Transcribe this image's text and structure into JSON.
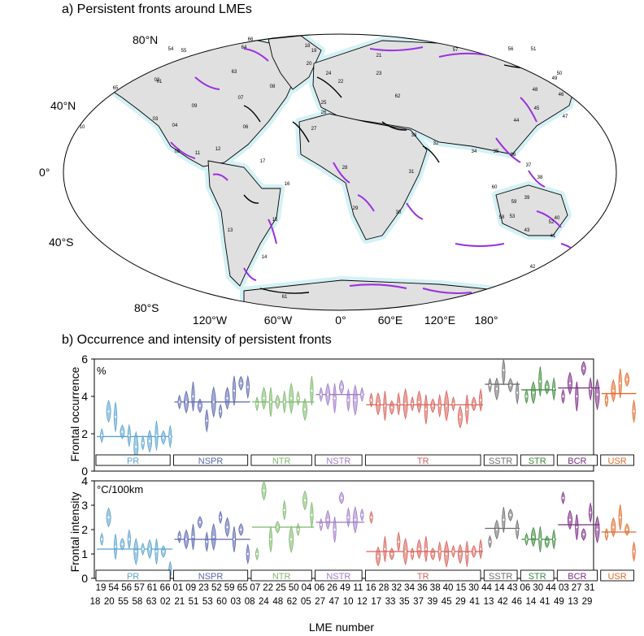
{
  "panel_a": {
    "title": "a) Persistent fronts around LMEs",
    "lat_labels": [
      "80°N",
      "40°N",
      "0°",
      "40°S",
      "80°S"
    ],
    "lon_labels": [
      "120°W",
      "60°W",
      "0°",
      "60°E",
      "120°E",
      "180°"
    ],
    "lme_labels": [
      "66",
      "54",
      "55",
      "64",
      "01",
      "02",
      "65",
      "10",
      "63",
      "07",
      "18",
      "19",
      "20",
      "21",
      "57",
      "56",
      "23",
      "22",
      "24",
      "25",
      "26",
      "62",
      "09",
      "06",
      "08",
      "03",
      "04",
      "05",
      "11",
      "12",
      "13",
      "14",
      "15",
      "16",
      "17",
      "27",
      "28",
      "29",
      "30",
      "31",
      "32",
      "33",
      "34",
      "35",
      "36",
      "37",
      "38",
      "39",
      "40",
      "41",
      "42",
      "43",
      "44",
      "45",
      "46",
      "47",
      "48",
      "49",
      "50",
      "51",
      "52",
      "53",
      "58",
      "59",
      "60",
      "61"
    ],
    "colors": {
      "land": "#e0e0e0",
      "shelf": "#d4f1f5",
      "front_black": "#000000",
      "front_purple": "#9b30e0"
    }
  },
  "panel_b": {
    "title": "b) Occurrence and intensity of persistent fronts",
    "x_axis_label": "LME number"
  },
  "chart_data": [
    {
      "type": "violin",
      "ylabel": "Frontal occurrence",
      "unit_label": "%",
      "ylim": [
        0,
        6
      ],
      "yticks": [
        0,
        2,
        4,
        6
      ],
      "regions": [
        {
          "name": "PR",
          "lmes": [
            "18",
            "19",
            "20",
            "54",
            "55",
            "56",
            "57",
            "58",
            "61",
            "63",
            "66"
          ],
          "color": "#5ba3d0",
          "mean": 1.85,
          "values": [
            1.9,
            3.2,
            2.9,
            2.1,
            1.9,
            1.3,
            1.5,
            1.6,
            1.9,
            1.8,
            1.85
          ]
        },
        {
          "name": "NSPR",
          "lmes": [
            "01",
            "02",
            "09",
            "21",
            "23",
            "51",
            "52",
            "53",
            "59",
            "60",
            "65"
          ],
          "color": "#5b66b0",
          "mean": 3.7,
          "values": [
            3.7,
            3.7,
            4.0,
            3.5,
            2.7,
            3.7,
            3.2,
            3.9,
            4.3,
            4.7,
            4.5
          ]
        },
        {
          "name": "NTR",
          "lmes": [
            "03",
            "07",
            "08",
            "22",
            "24",
            "25",
            "48",
            "50",
            "62"
          ],
          "color": "#7fb86e",
          "mean": 3.7,
          "values": [
            3.6,
            3.9,
            3.7,
            3.7,
            3.7,
            3.9,
            3.9,
            3.3,
            4.3
          ]
        },
        {
          "name": "NSTR",
          "lmes": [
            "04",
            "05",
            "06",
            "26",
            "27",
            "47",
            "49"
          ],
          "color": "#a17bc9",
          "mean": 4.1,
          "values": [
            4.1,
            4.1,
            3.9,
            4.5,
            3.8,
            3.8,
            4.1
          ]
        },
        {
          "name": "TR",
          "lmes": [
            "10",
            "11",
            "12",
            "16",
            "17",
            "28",
            "30",
            "32",
            "33",
            "34",
            "35",
            "36",
            "37",
            "38",
            "39",
            "40",
            "45"
          ],
          "color": "#d9605a",
          "mean": 3.55,
          "values": [
            3.8,
            3.6,
            3.5,
            3.4,
            3.6,
            3.6,
            3.6,
            3.7,
            3.3,
            3.5,
            3.5,
            3.5,
            3.6,
            2.9,
            3.3,
            3.6,
            3.8
          ]
        },
        {
          "name": "SSTR",
          "lmes": [
            "15",
            "29",
            "30",
            "41",
            "44"
          ],
          "color": "#6e6e6e",
          "mean": 4.65,
          "values": [
            4.6,
            4.4,
            5.4,
            4.6,
            4.2
          ]
        },
        {
          "name": "STR",
          "lmes": [
            "13",
            "14",
            "42",
            "43",
            "46"
          ],
          "color": "#3e8a3e",
          "mean": 4.35,
          "values": [
            4.0,
            4.2,
            4.8,
            4.5,
            4.4
          ]
        },
        {
          "name": "BCR",
          "lmes": [
            "06",
            "14",
            "30",
            "41",
            "44",
            "49"
          ],
          "color": "#7a2c83",
          "mean": 4.45,
          "values": [
            4.0,
            4.7,
            4.0,
            5.5,
            4.4,
            4.1
          ]
        },
        {
          "name": "USR",
          "lmes": [
            "03",
            "13",
            "27",
            "29",
            "31"
          ],
          "color": "#e06b2d",
          "mean": 4.15,
          "values": [
            3.8,
            4.3,
            4.7,
            4.9,
            3.2
          ]
        }
      ]
    },
    {
      "type": "violin",
      "ylabel": "Frontal intensity",
      "unit_label": "°C/100km",
      "ylim": [
        0,
        4
      ],
      "yticks": [
        0,
        1,
        2,
        3,
        4
      ],
      "regions": [
        {
          "name": "PR",
          "lmes": [
            "18",
            "19",
            "20",
            "54",
            "55",
            "56",
            "57",
            "58",
            "61",
            "63",
            "66"
          ],
          "color": "#5ba3d0",
          "mean": 1.2,
          "values": [
            1.6,
            2.5,
            1.3,
            1.4,
            1.6,
            1.1,
            1.2,
            1.2,
            1.1,
            1.1,
            0.3
          ]
        },
        {
          "name": "NSPR",
          "lmes": [
            "01",
            "02",
            "09",
            "21",
            "23",
            "51",
            "52",
            "53",
            "59",
            "60",
            "65"
          ],
          "color": "#5b66b0",
          "mean": 1.6,
          "values": [
            1.7,
            1.6,
            1.7,
            2.3,
            1.5,
            1.7,
            2.5,
            2.1,
            1.6,
            2.0,
            1.0
          ]
        },
        {
          "name": "NTR",
          "lmes": [
            "03",
            "07",
            "08",
            "22",
            "24",
            "25",
            "48",
            "50",
            "62"
          ],
          "color": "#7fb86e",
          "mean": 2.1,
          "values": [
            1.0,
            3.6,
            1.6,
            2.1,
            2.8,
            1.6,
            2.0,
            3.2,
            2.6
          ]
        },
        {
          "name": "NSTR",
          "lmes": [
            "04",
            "05",
            "06",
            "26",
            "27",
            "47",
            "49"
          ],
          "color": "#a17bc9",
          "mean": 2.3,
          "values": [
            2.2,
            2.4,
            2.0,
            3.3,
            2.5,
            2.4,
            2.6
          ]
        },
        {
          "name": "TR",
          "lmes": [
            "10",
            "11",
            "12",
            "16",
            "17",
            "28",
            "30",
            "32",
            "33",
            "34",
            "35",
            "36",
            "37",
            "38",
            "39",
            "40",
            "45"
          ],
          "color": "#d9605a",
          "mean": 1.1,
          "values": [
            2.5,
            0.9,
            1.2,
            1.0,
            1.5,
            1.1,
            1.0,
            1.2,
            1.2,
            1.0,
            1.1,
            1.0,
            1.1,
            1.0,
            1.0,
            1.1,
            1.2
          ]
        },
        {
          "name": "SSTR",
          "lmes": [
            "15",
            "29",
            "30",
            "41",
            "44"
          ],
          "color": "#6e6e6e",
          "mean": 2.05,
          "values": [
            1.5,
            2.0,
            2.4,
            2.6,
            2.0
          ]
        },
        {
          "name": "STR",
          "lmes": [
            "13",
            "14",
            "42",
            "43",
            "46"
          ],
          "color": "#3e8a3e",
          "mean": 1.6,
          "values": [
            1.6,
            1.7,
            1.6,
            1.5,
            1.6
          ]
        },
        {
          "name": "BCR",
          "lmes": [
            "06",
            "14",
            "30",
            "41",
            "44",
            "49"
          ],
          "color": "#7a2c83",
          "mean": 2.2,
          "values": [
            3.3,
            2.4,
            2.1,
            1.8,
            2.7,
            2.0
          ]
        },
        {
          "name": "USR",
          "lmes": [
            "03",
            "13",
            "27",
            "29",
            "31"
          ],
          "color": "#e06b2d",
          "mean": 1.9,
          "values": [
            1.8,
            2.1,
            2.5,
            2.0,
            1.1
          ]
        }
      ]
    }
  ],
  "x_tick_labels_top": [
    "19",
    "54",
    "56",
    "57",
    "61",
    "66",
    "01",
    "09",
    "23",
    "52",
    "59",
    "65",
    "07",
    "22",
    "25",
    "50",
    "04",
    "06",
    "26",
    "49",
    "11",
    "16",
    "28",
    "32",
    "34",
    "36",
    "38",
    "40",
    "15",
    "30",
    "44",
    "14",
    "43",
    "06",
    "30",
    "44",
    "03",
    "27",
    "31"
  ],
  "x_tick_labels_bottom": [
    "18",
    "20",
    "55",
    "58",
    "63",
    "02",
    "21",
    "51",
    "53",
    "60",
    "03",
    "08",
    "24",
    "48",
    "62",
    "05",
    "27",
    "47",
    "10",
    "12",
    "17",
    "33",
    "35",
    "37",
    "39",
    "45",
    "29",
    "41",
    "13",
    "42",
    "46",
    "14",
    "41",
    "49",
    "13",
    "29"
  ]
}
